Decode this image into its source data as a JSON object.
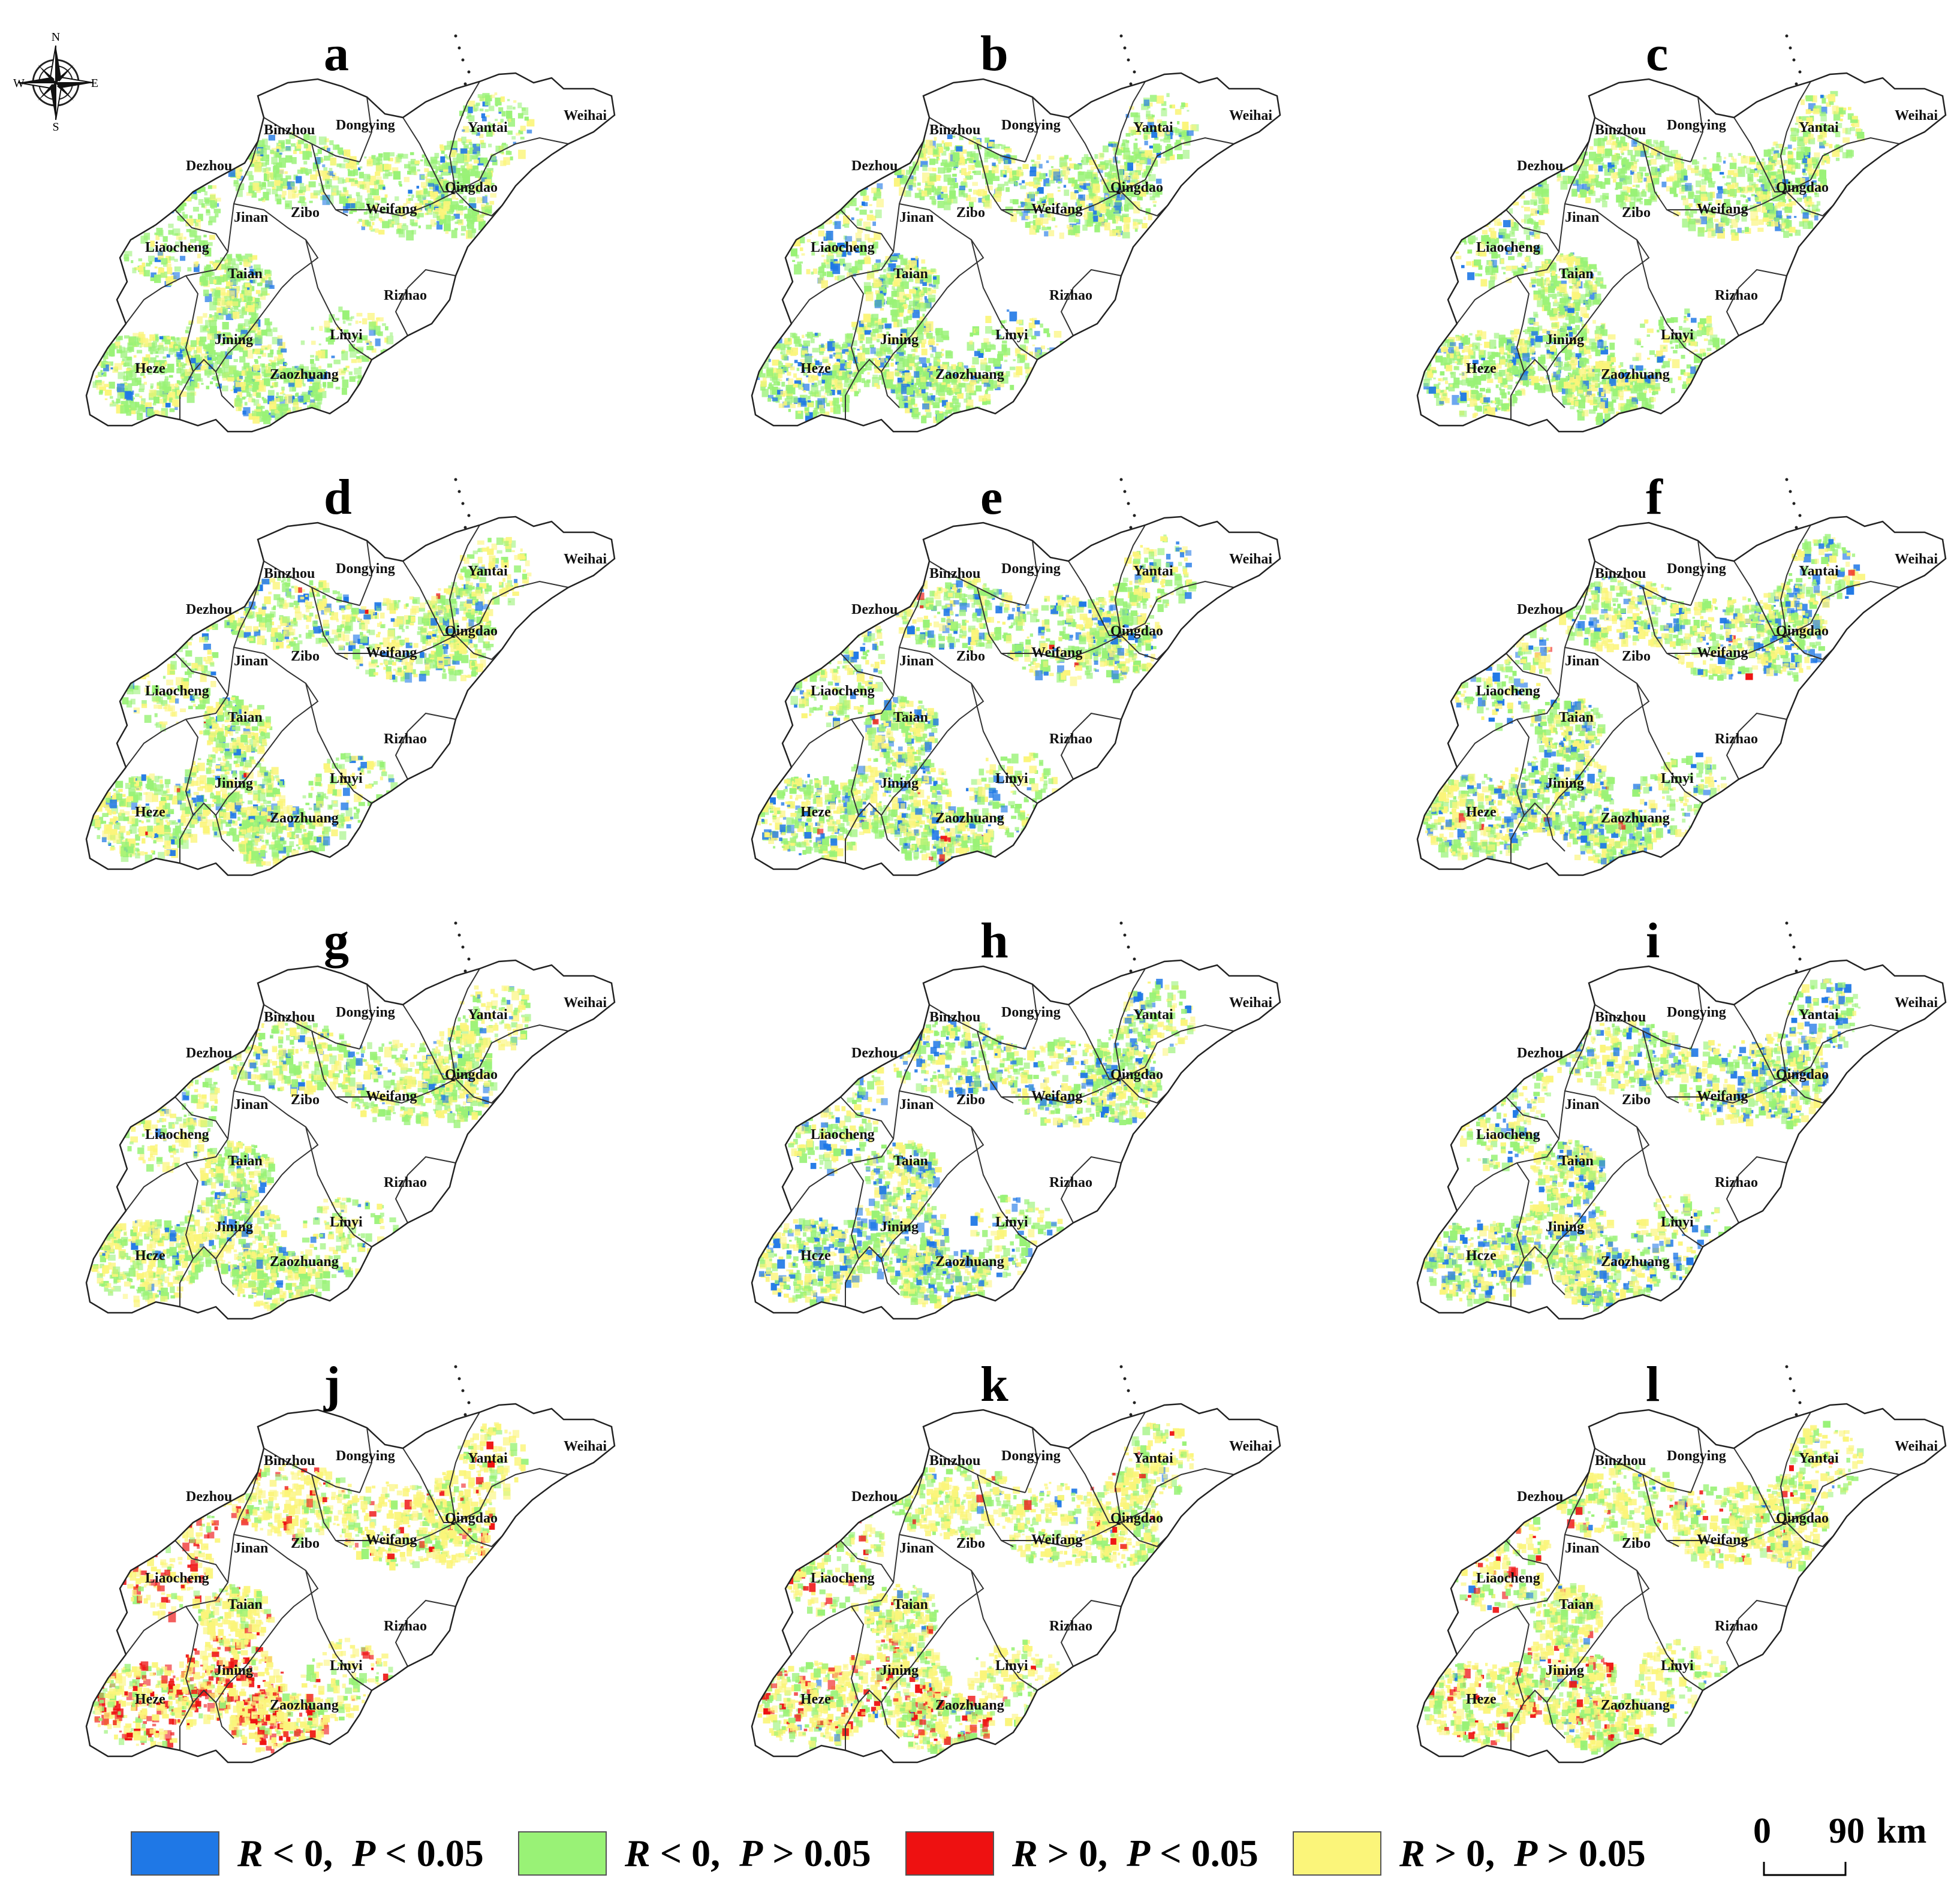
{
  "panels": [
    {
      "letter": "a",
      "scenario": {
        "blue": 0.1,
        "green": 0.62,
        "yellow": 0.28,
        "red": 0.0
      }
    },
    {
      "letter": "b",
      "scenario": {
        "blue": 0.14,
        "green": 0.55,
        "yellow": 0.31,
        "red": 0.0
      }
    },
    {
      "letter": "c",
      "scenario": {
        "blue": 0.08,
        "green": 0.6,
        "yellow": 0.32,
        "red": 0.0
      }
    },
    {
      "letter": "d",
      "scenario": {
        "blue": 0.09,
        "green": 0.5,
        "yellow": 0.4,
        "red": 0.01
      }
    },
    {
      "letter": "e",
      "scenario": {
        "blue": 0.14,
        "green": 0.48,
        "yellow": 0.37,
        "red": 0.01
      }
    },
    {
      "letter": "f",
      "scenario": {
        "blue": 0.16,
        "green": 0.45,
        "yellow": 0.38,
        "red": 0.01
      }
    },
    {
      "letter": "g",
      "scenario": {
        "blue": 0.08,
        "green": 0.45,
        "yellow": 0.47,
        "red": 0.0
      }
    },
    {
      "letter": "h",
      "scenario": {
        "blue": 0.15,
        "green": 0.47,
        "yellow": 0.38,
        "red": 0.0
      }
    },
    {
      "letter": "i",
      "scenario": {
        "blue": 0.18,
        "green": 0.42,
        "yellow": 0.4,
        "red": 0.0
      }
    },
    {
      "letter": "j",
      "scenario": {
        "blue": 0.0,
        "green": 0.14,
        "yellow": 0.58,
        "red": 0.28
      }
    },
    {
      "letter": "k",
      "scenario": {
        "blue": 0.01,
        "green": 0.3,
        "yellow": 0.56,
        "red": 0.13
      }
    },
    {
      "letter": "l",
      "scenario": {
        "blue": 0.02,
        "green": 0.33,
        "yellow": 0.57,
        "red": 0.08
      }
    }
  ],
  "cities": [
    {
      "name": "Binzhou"
    },
    {
      "name": "Dongying"
    },
    {
      "name": "Yantai"
    },
    {
      "name": "Weihai"
    },
    {
      "name": "Dezhou"
    },
    {
      "name": "Qingdao"
    },
    {
      "name": "Jinan"
    },
    {
      "name": "Zibo"
    },
    {
      "name": "Weifang"
    },
    {
      "name": "Liaocheng"
    },
    {
      "name": "Taian"
    },
    {
      "name": "Rizhao"
    },
    {
      "name": "Linyi"
    },
    {
      "name": "Jining"
    },
    {
      "name": "Heze"
    },
    {
      "name": "Zaozhuang"
    }
  ],
  "heze_variant_label": "Hcze",
  "compass": {
    "n": "N",
    "s": "S",
    "e": "E",
    "w": "W"
  },
  "legend": [
    {
      "color": "#1f78e6",
      "r_text": "R",
      "r_op": "< 0,",
      "p_text": "P",
      "p_op": "< 0.05"
    },
    {
      "color": "#99f276",
      "r_text": "R",
      "r_op": "< 0,",
      "p_text": "P",
      "p_op": "> 0.05"
    },
    {
      "color": "#ee1111",
      "r_text": "R",
      "r_op": "> 0,",
      "p_text": "P",
      "p_op": "< 0.05"
    },
    {
      "color": "#fbf57a",
      "r_text": "R",
      "r_op": "> 0,",
      "p_text": "P",
      "p_op": "> 0.05"
    }
  ],
  "scale": {
    "zero": "0",
    "distance": "90",
    "unit": "km"
  }
}
